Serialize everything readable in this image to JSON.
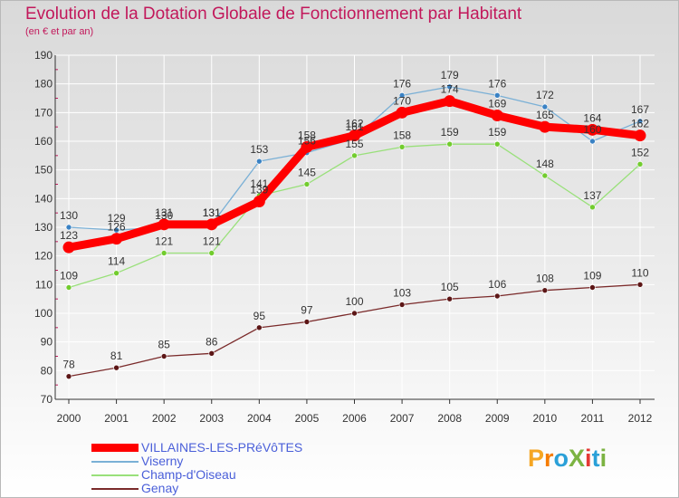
{
  "title": "Evolution de la Dotation Globale de Fonctionnement par Habitant",
  "subtitle": "(en € et par an)",
  "logo": "ProXiti",
  "colors": {
    "title": "#c2185b",
    "axis": "#333333",
    "grid": "#ffffff",
    "legend_text": "#4a5fd9"
  },
  "chart_data": {
    "type": "line",
    "title": "Evolution de la Dotation Globale de Fonctionnement par Habitant",
    "subtitle": "(en € et par an)",
    "xlabel": "",
    "ylabel": "",
    "grid": true,
    "legend_position": "bottom-left",
    "ylim": [
      70,
      190
    ],
    "yticks": [
      70,
      80,
      90,
      100,
      110,
      120,
      130,
      140,
      150,
      160,
      170,
      180,
      190
    ],
    "categories": [
      "2000",
      "2001",
      "2002",
      "2003",
      "2004",
      "2005",
      "2006",
      "2007",
      "2008",
      "2009",
      "2010",
      "2011",
      "2012"
    ],
    "series": [
      {
        "name": "VILLAINES-LES-PRéVôTES",
        "color": "#ff0000",
        "marker": "#ff0000",
        "width": 9,
        "values": [
          123,
          126,
          131,
          131,
          139,
          158,
          162,
          170,
          174,
          169,
          165,
          164,
          162
        ]
      },
      {
        "name": "Viserny",
        "color": "#7ab0d6",
        "marker": "#3a82c4",
        "width": 1.3,
        "values": [
          130,
          129,
          130,
          131,
          153,
          156,
          161,
          176,
          179,
          176,
          172,
          160,
          167
        ]
      },
      {
        "name": "Champ-d'Oiseau",
        "color": "#99e07a",
        "marker": "#72cc2e",
        "width": 1.3,
        "values": [
          109,
          114,
          121,
          121,
          141,
          145,
          155,
          158,
          159,
          159,
          148,
          137,
          152
        ]
      },
      {
        "name": "Genay",
        "color": "#7a2a2a",
        "marker": "#5c1616",
        "width": 1.3,
        "values": [
          78,
          81,
          85,
          86,
          95,
          97,
          100,
          103,
          105,
          106,
          108,
          109,
          110
        ]
      }
    ],
    "data_labels": [
      {
        "series": 0,
        "labels": [
          "123",
          "126",
          "131",
          "131",
          "139",
          "158",
          "162",
          "170",
          "174",
          "169",
          "165",
          "164",
          "162"
        ]
      },
      {
        "series": 1,
        "labels": [
          "130",
          "129",
          "130",
          "131",
          "153",
          "156",
          "161",
          "176",
          "179",
          "176",
          "172",
          "160",
          "167"
        ]
      },
      {
        "series": 2,
        "labels": [
          "109",
          "114",
          "121",
          "121",
          "141",
          "145",
          "155",
          "158",
          "159",
          "159",
          "148",
          "137",
          "152"
        ]
      },
      {
        "series": 3,
        "labels": [
          "78",
          "81",
          "85",
          "86",
          "95",
          "97",
          "100",
          "103",
          "105",
          "106",
          "108",
          "109",
          "110"
        ]
      }
    ]
  }
}
